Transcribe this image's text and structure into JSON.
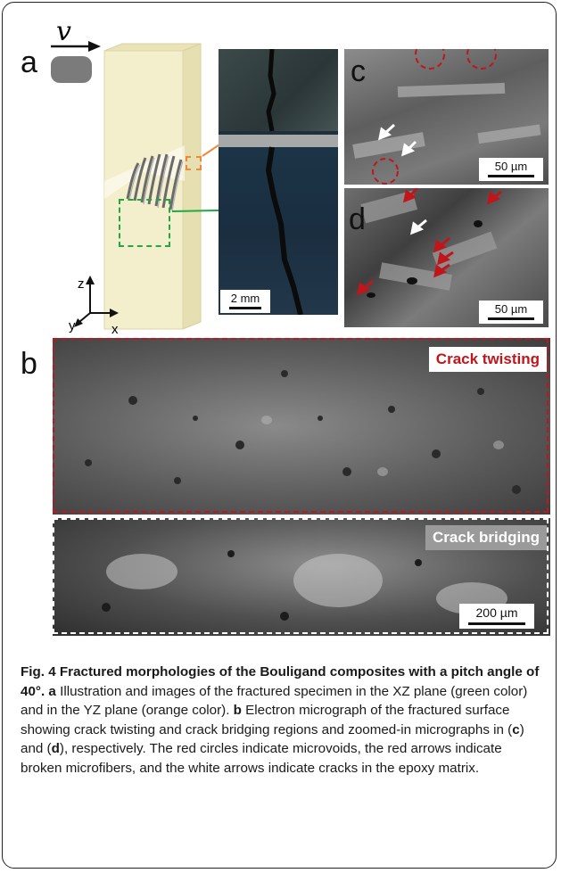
{
  "figure": {
    "panel_a": {
      "letter": "a",
      "velocity_symbol": "v",
      "axes": {
        "z": "z",
        "y": "y",
        "x": "x"
      },
      "inset_scale_label": "2 mm"
    },
    "panel_b": {
      "letter": "b",
      "region_top_label": "Crack twisting",
      "region_bottom_label": "Crack bridging",
      "scale_label": "200 µm"
    },
    "panel_c": {
      "letter": "c",
      "scale_label": "50 µm"
    },
    "panel_d": {
      "letter": "d",
      "scale_label": "50 µm"
    }
  },
  "caption": {
    "title": "Fig. 4 Fractured morphologies of the Bouligand composites with a pitch angle of 40°.",
    "seg1_label": "a",
    "seg1_text": " Illustration and images of the fractured specimen in the XZ plane (green color) and in the YZ plane (orange color). ",
    "seg2_label": "b",
    "seg2_text": " Electron micrograph of the fractured surface showing crack twisting and crack bridging regions and zoomed-in micrographs in (",
    "ref_c": "c",
    "seg3_text": ") and (",
    "ref_d": "d",
    "seg4_text": "), respectively. The red circles indicate microvoids, the red arrows indicate broken microfibers, and the white arrows indicate cracks in the epoxy matrix."
  },
  "colors": {
    "twisting_red": "#c0161b",
    "bridging_grey": "#9a9a9a",
    "green_box": "#22a745",
    "orange_box": "#f0883a",
    "specimen_fill": "#f3eecb"
  }
}
